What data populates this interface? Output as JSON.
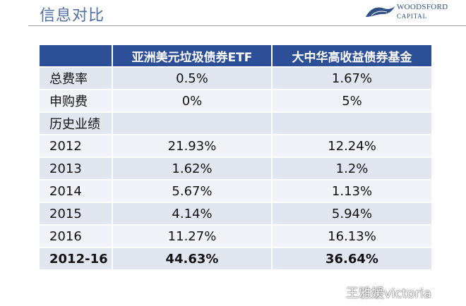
{
  "slide": {
    "title": "信息对比",
    "logo": {
      "line1": "WOODSFORD",
      "line2": "CAPITAL"
    },
    "watermark": {
      "icon": "weibo-icon",
      "text": "王雅媛victoria"
    }
  },
  "table": {
    "headers": [
      "",
      "亚洲美元垃圾债券ETF",
      "大中华高收益债券基金"
    ],
    "rows": [
      {
        "label": "总费率",
        "etf": "0.5%",
        "fund": "1.67%"
      },
      {
        "label": "申购费",
        "etf": "0%",
        "fund": "5%"
      },
      {
        "label": "历史业绩",
        "etf": "",
        "fund": ""
      },
      {
        "label": "2012",
        "etf": "21.93%",
        "fund": "12.24%"
      },
      {
        "label": "2013",
        "etf": "1.62%",
        "fund": "1.2%"
      },
      {
        "label": "2014",
        "etf": "5.67%",
        "fund": "1.13%"
      },
      {
        "label": "2015",
        "etf": "4.14%",
        "fund": "5.94%"
      },
      {
        "label": "2016",
        "etf": "11.27%",
        "fund": "16.13%"
      },
      {
        "label": "2012-16",
        "etf": "44.63%",
        "fund": "36.64%"
      }
    ]
  },
  "colors": {
    "title": "#4f6fa3",
    "header_bg": "#2d4f97",
    "row_odd": "#e2e6f1",
    "row_even": "#f1f3f9"
  }
}
